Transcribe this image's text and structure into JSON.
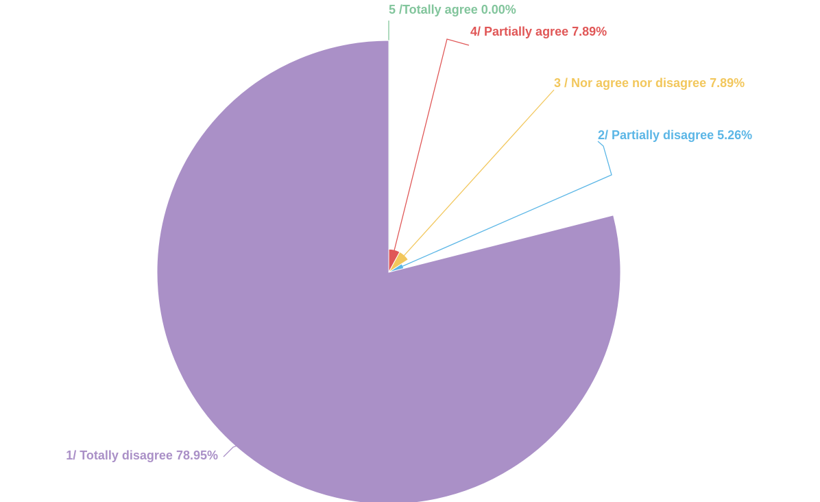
{
  "chart_data": {
    "type": "pie",
    "categories": [
      "5 /Totally agree",
      "4/ Partially agree",
      "3 / Nor agree nor disagree",
      "2/ Partially disagree",
      "1/ Totally disagree"
    ],
    "values": [
      0,
      7.89,
      7.89,
      5.26,
      78.95
    ],
    "value_labels": [
      "0.00%",
      "7.89%",
      "7.89%",
      "5.26%",
      "78.95%"
    ],
    "colors": [
      "#82c59c",
      "#e05757",
      "#f2c75c",
      "#5bb6e6",
      "#aa90c7"
    ]
  }
}
